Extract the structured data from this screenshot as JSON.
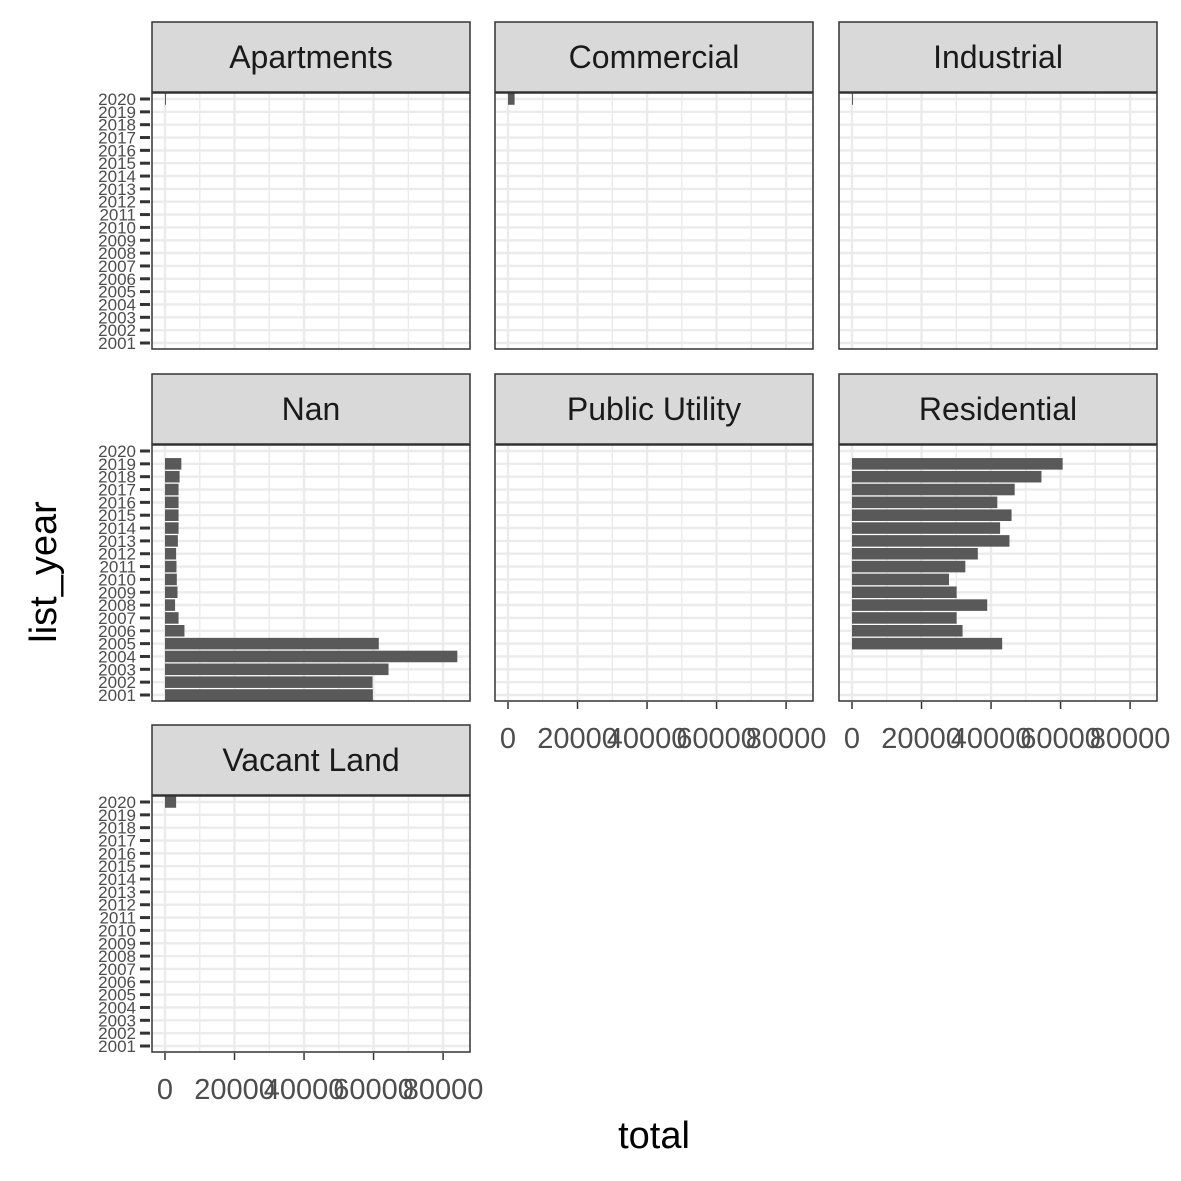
{
  "chart_data": {
    "type": "bar",
    "orientation": "horizontal",
    "xlabel": "total",
    "ylabel": "list_year",
    "xlim": [
      0,
      88000
    ],
    "xticks": [
      0,
      20000,
      40000,
      60000,
      80000
    ],
    "xtick_labels": [
      "0",
      "20000",
      "40000",
      "60000",
      "80000"
    ],
    "categories": [
      "2001",
      "2002",
      "2003",
      "2004",
      "2005",
      "2006",
      "2007",
      "2008",
      "2009",
      "2010",
      "2011",
      "2012",
      "2013",
      "2014",
      "2015",
      "2016",
      "2017",
      "2018",
      "2019",
      "2020"
    ],
    "grid": true,
    "bar_color": "#595959",
    "panels": [
      {
        "name": "Apartments",
        "values": [
          0,
          0,
          0,
          0,
          0,
          0,
          0,
          0,
          0,
          0,
          0,
          0,
          0,
          0,
          0,
          0,
          0,
          0,
          0,
          90
        ]
      },
      {
        "name": "Commercial",
        "values": [
          0,
          0,
          0,
          0,
          0,
          0,
          0,
          0,
          0,
          0,
          0,
          0,
          0,
          0,
          0,
          0,
          0,
          0,
          0,
          1900
        ]
      },
      {
        "name": "Industrial",
        "values": [
          0,
          0,
          0,
          0,
          0,
          0,
          0,
          0,
          0,
          0,
          0,
          0,
          0,
          0,
          0,
          0,
          0,
          0,
          0,
          90
        ]
      },
      {
        "name": "Nan",
        "values": [
          59800,
          59700,
          64300,
          84100,
          61500,
          5600,
          3900,
          2900,
          3600,
          3400,
          3300,
          3200,
          3700,
          3900,
          3900,
          3900,
          3900,
          4200,
          4700,
          0
        ]
      },
      {
        "name": "Public Utility",
        "values": [
          0,
          0,
          0,
          0,
          0,
          0,
          0,
          0,
          0,
          0,
          0,
          0,
          0,
          0,
          0,
          0,
          0,
          0,
          0,
          0
        ]
      },
      {
        "name": "Residential",
        "values": [
          0,
          0,
          0,
          0,
          43200,
          31800,
          30100,
          38900,
          30100,
          27900,
          32600,
          36200,
          45300,
          42600,
          45900,
          41800,
          46800,
          54500,
          60600,
          0
        ]
      },
      {
        "name": "Vacant Land",
        "values": [
          0,
          0,
          0,
          0,
          0,
          0,
          0,
          0,
          0,
          0,
          0,
          0,
          0,
          0,
          0,
          0,
          0,
          0,
          0,
          3200
        ]
      }
    ]
  }
}
